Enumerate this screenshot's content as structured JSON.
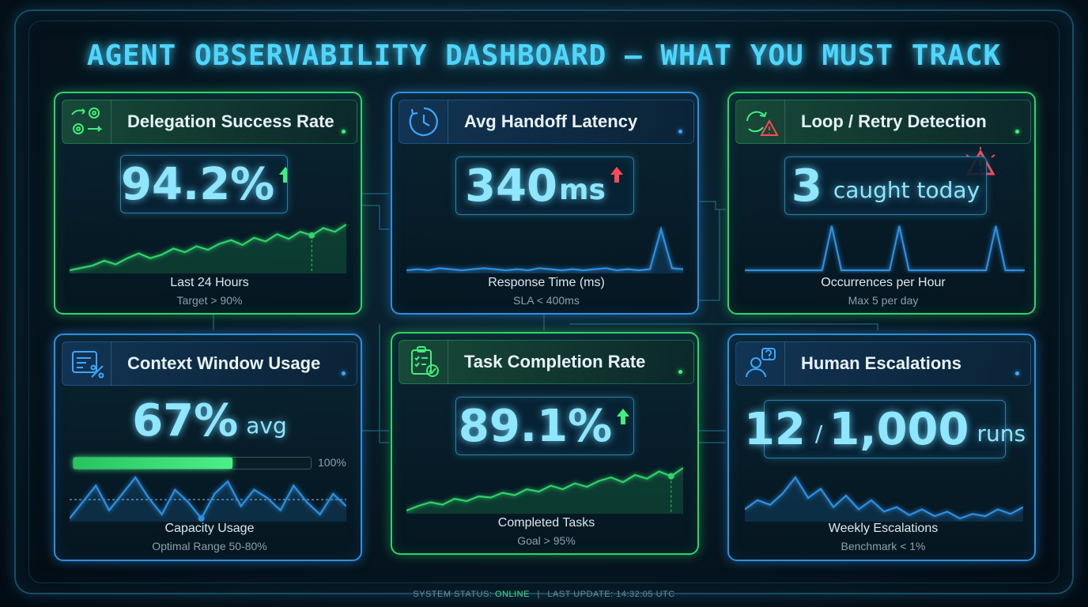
{
  "title": "AGENT OBSERVABILITY DASHBOARD — WHAT YOU MUST TRACK",
  "colors": {
    "green": "#2fd36a",
    "blue": "#2e8fe0",
    "red": "#ff4a55",
    "cyan": "#4fd6ff"
  },
  "panels": [
    {
      "title": "Delegation Success Rate",
      "icon": "delegation-gears-icon",
      "value": "94.2%",
      "trend": "up",
      "trend_icon": "arrow-up-green-icon",
      "caption": "Last 24 Hours",
      "subcaption": "Target > 90%",
      "series": [
        20,
        22,
        24,
        28,
        25,
        30,
        34,
        30,
        33,
        38,
        35,
        40,
        37,
        42,
        45,
        41,
        47,
        44,
        50,
        46,
        52,
        49,
        55,
        52,
        58
      ]
    },
    {
      "title": "Avg Handoff Latency",
      "icon": "clock-icon",
      "value": "340",
      "unit": "ms",
      "trend": "up",
      "trend_icon": "arrow-up-red-icon",
      "caption": "Response Time (ms)",
      "subcaption": "SLA < 400ms",
      "series": [
        22,
        23,
        22,
        24,
        23,
        22,
        23,
        24,
        23,
        22,
        23,
        22,
        24,
        23,
        22,
        23,
        22,
        23,
        24,
        22,
        23,
        22,
        23,
        60,
        24,
        23
      ]
    },
    {
      "title": "Loop / Retry Detection",
      "icon": "loop-retry-icon",
      "value": "3",
      "unit": "caught today",
      "alert_icon": "warning-triangle-icon",
      "caption": "Occurrences per Hour",
      "subcaption": "Max 5 per day",
      "series": [
        0,
        0,
        0,
        0,
        0,
        0,
        0,
        0,
        0,
        1,
        0,
        0,
        0,
        0,
        0,
        0,
        1,
        0,
        0,
        0,
        0,
        0,
        0,
        0,
        0,
        0,
        1,
        0,
        0,
        0
      ]
    },
    {
      "title": "Context Window Usage",
      "icon": "context-percent-icon",
      "value": "67%",
      "unit": "avg",
      "progress": 0.67,
      "progress_max_label": "100%",
      "caption": "Capacity Usage",
      "subcaption": "Optimal Range 50-80%",
      "series": [
        40,
        44,
        48,
        42,
        46,
        50,
        45,
        41,
        47,
        44,
        40,
        46,
        49,
        43,
        47,
        45,
        42,
        48,
        44,
        41,
        46,
        43
      ]
    },
    {
      "title": "Task Completion Rate",
      "icon": "clipboard-check-icon",
      "value": "89.1%",
      "trend": "up",
      "trend_icon": "arrow-up-green-icon",
      "caption": "Completed Tasks",
      "subcaption": "Goal > 95%",
      "series": [
        10,
        14,
        17,
        15,
        20,
        18,
        22,
        21,
        25,
        23,
        28,
        26,
        31,
        28,
        33,
        30,
        35,
        38,
        34,
        40,
        37,
        43,
        39,
        46
      ]
    },
    {
      "title": "Human Escalations",
      "icon": "person-question-icon",
      "value": "12",
      "unit_sep": "/",
      "value2": "1,000",
      "unit": "runs",
      "caption": "Weekly Escalations",
      "subcaption": "Benchmark < 1%",
      "series": [
        20,
        28,
        24,
        34,
        48,
        30,
        38,
        22,
        32,
        20,
        28,
        18,
        22,
        15,
        20,
        14,
        18,
        12,
        16,
        14,
        20,
        16,
        22
      ]
    }
  ],
  "status": {
    "label": "SYSTEM STATUS:",
    "state": "ONLINE",
    "sep": "|",
    "update": "LAST UPDATE: 14:32:05 UTC"
  }
}
